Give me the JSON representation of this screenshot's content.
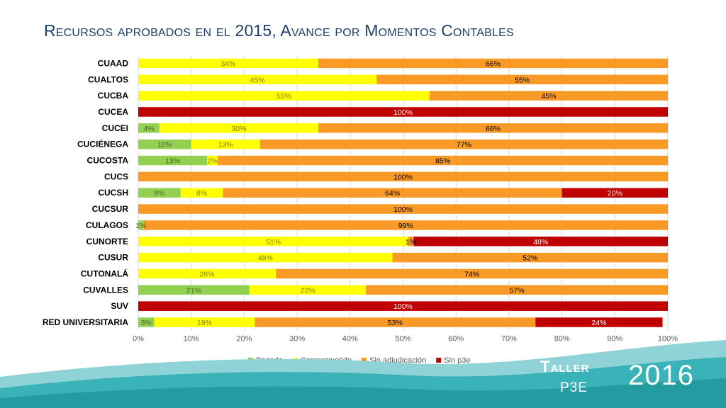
{
  "title": "Recursos aprobados en el 2015, Avance por Momentos Contables",
  "badge": {
    "line1": "Taller",
    "line2": "P3E",
    "year": "2016"
  },
  "colors": {
    "Pagado": "#92d050",
    "Comprometido": "#ffff00",
    "Sin adjudicación": "#f99a27",
    "Sin p3e": "#c00000"
  },
  "chart_data": {
    "type": "bar",
    "orientation": "horizontal",
    "stacked": true,
    "percent": true,
    "categories": [
      "CUAAD",
      "CUALTOS",
      "CUCBA",
      "CUCEA",
      "CUCEI",
      "CUCIÉNEGA",
      "CUCOSTA",
      "CUCS",
      "CUCSH",
      "CUCSUR",
      "CULAGOS",
      "CUNORTE",
      "CUSUR",
      "CUTONALÁ",
      "CUVALLES",
      "SUV",
      "RED UNIVERSITARIA"
    ],
    "series": [
      {
        "name": "Pagado",
        "values": [
          0,
          0,
          0,
          0,
          4,
          10,
          13,
          0,
          8,
          0,
          1,
          0,
          0,
          0,
          21,
          0,
          3
        ]
      },
      {
        "name": "Comprometido",
        "values": [
          34,
          45,
          55,
          0,
          30,
          13,
          2,
          0,
          8,
          0,
          0,
          51,
          48,
          26,
          22,
          0,
          19
        ]
      },
      {
        "name": "Sin adjudicación",
        "values": [
          66,
          55,
          45,
          0,
          66,
          77,
          85,
          100,
          64,
          100,
          99,
          1,
          52,
          74,
          57,
          0,
          53
        ]
      },
      {
        "name": "Sin p3e",
        "values": [
          0,
          0,
          0,
          100,
          0,
          0,
          0,
          0,
          20,
          0,
          0,
          48,
          0,
          0,
          0,
          100,
          24
        ]
      }
    ],
    "xlim": [
      0,
      100
    ],
    "xticks": [
      "0%",
      "10%",
      "20%",
      "30%",
      "40%",
      "50%",
      "60%",
      "70%",
      "80%",
      "90%",
      "100%"
    ],
    "legend": "bottom",
    "grid": true
  }
}
